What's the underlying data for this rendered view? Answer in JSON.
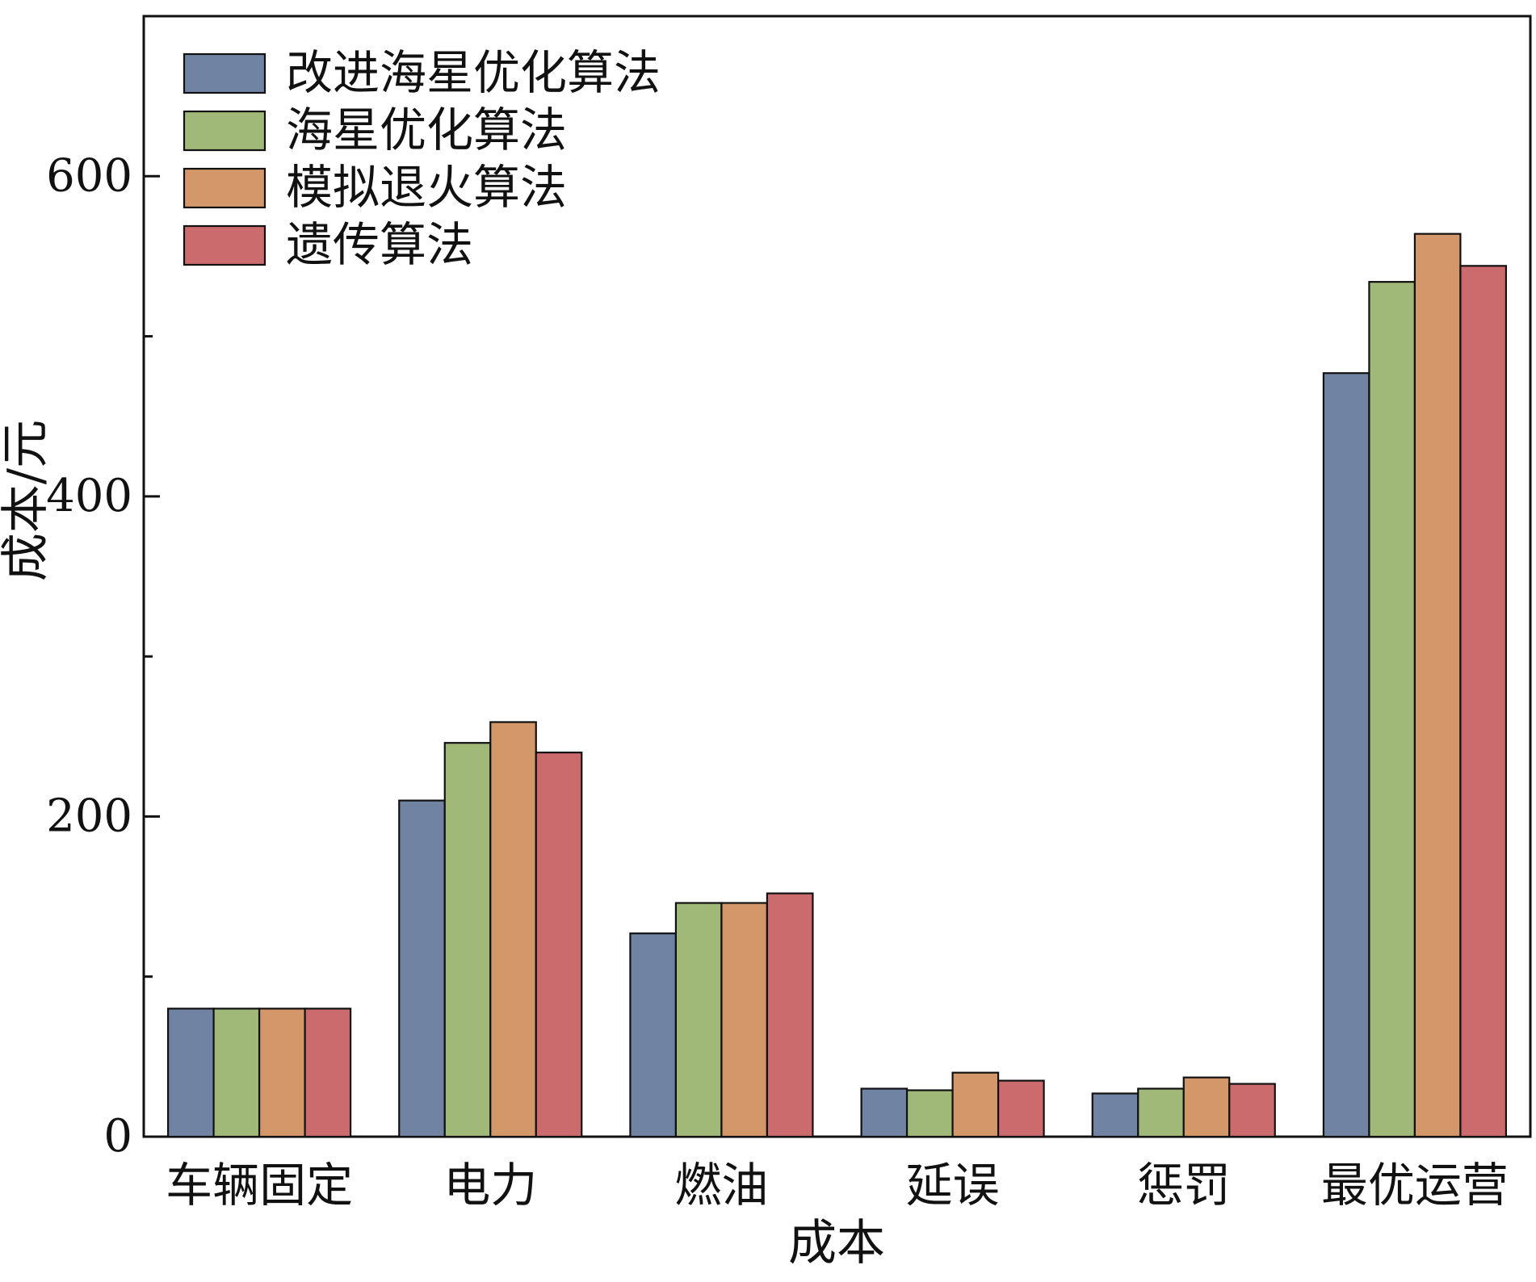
{
  "chart_data": {
    "type": "bar",
    "title": "",
    "xlabel": "成本",
    "ylabel": "成本/元",
    "ylim": [
      0,
      700
    ],
    "yticks": [
      0,
      200,
      400,
      600
    ],
    "categories": [
      "车辆固定",
      "电力",
      "燃油",
      "延误",
      "惩罚",
      "最优运营"
    ],
    "series": [
      {
        "name": "改进海星优化算法",
        "color": "#7083a3",
        "values": [
          80,
          210,
          127,
          30,
          27,
          477
        ]
      },
      {
        "name": "海星优化算法",
        "color": "#a0b878",
        "values": [
          80,
          246,
          146,
          29,
          30,
          534
        ]
      },
      {
        "name": "模拟退火算法",
        "color": "#d4976a",
        "values": [
          80,
          259,
          146,
          40,
          37,
          564
        ]
      },
      {
        "name": "遗传算法",
        "color": "#cc6b6e",
        "values": [
          80,
          240,
          152,
          35,
          33,
          544
        ]
      }
    ],
    "legend_position": "top-left",
    "grid": false
  }
}
